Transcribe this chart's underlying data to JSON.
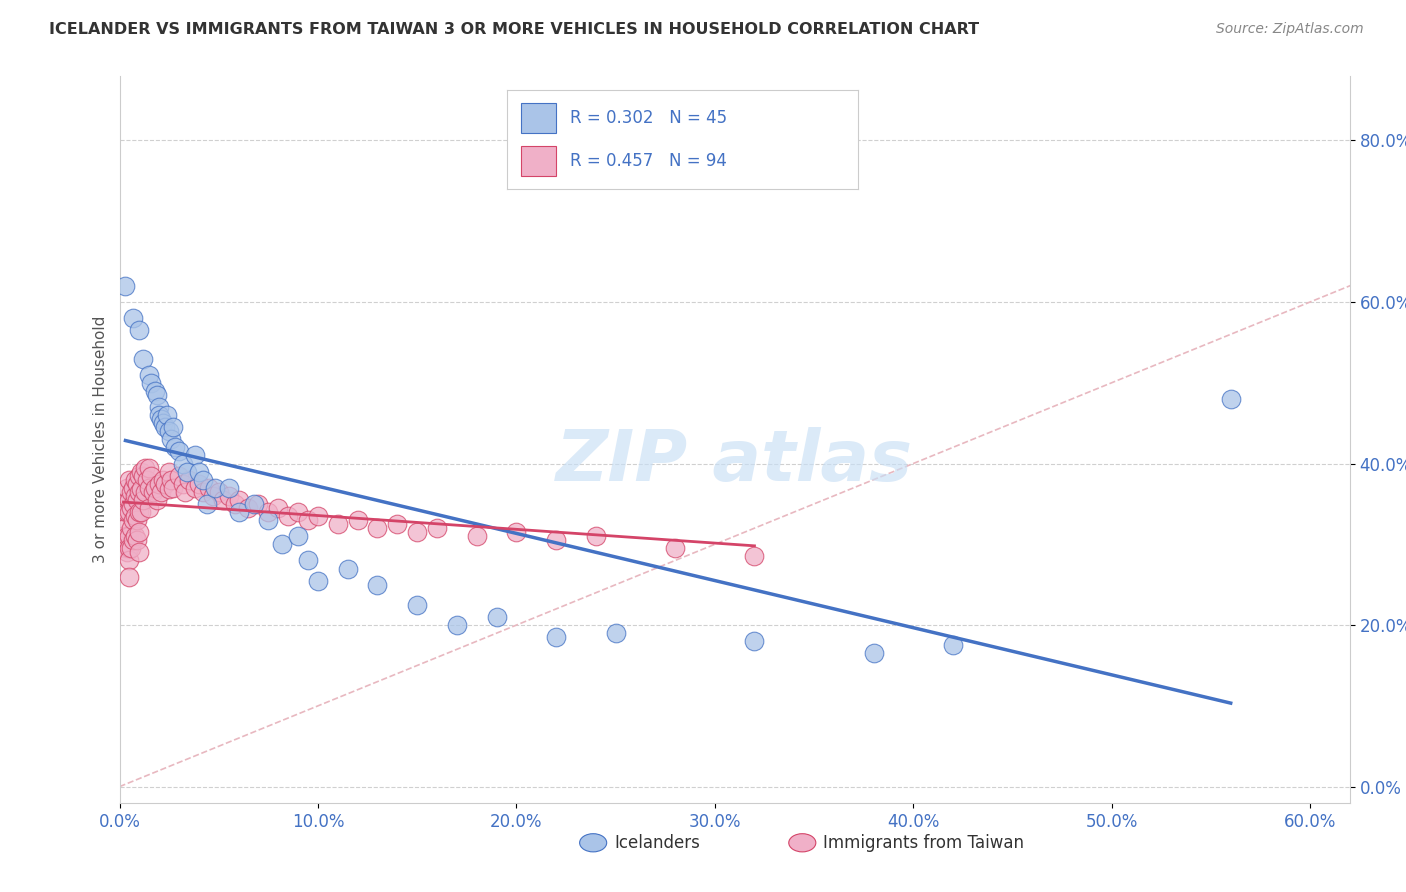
{
  "title": "ICELANDER VS IMMIGRANTS FROM TAIWAN 3 OR MORE VEHICLES IN HOUSEHOLD CORRELATION CHART",
  "source": "Source: ZipAtlas.com",
  "ylabel": "3 or more Vehicles in Household",
  "xlim": [
    0.0,
    0.62
  ],
  "ylim": [
    -0.02,
    0.88
  ],
  "legend_labels": [
    "Icelanders",
    "Immigrants from Taiwan"
  ],
  "R_icelander": 0.302,
  "N_icelander": 45,
  "R_taiwan": 0.457,
  "N_taiwan": 94,
  "color_icelander": "#aac4e8",
  "color_taiwan": "#f0b0c8",
  "line_color_icelander": "#4472c4",
  "line_color_taiwan": "#d44468",
  "diagonal_color": "#e8b8c0",
  "background_color": "#ffffff",
  "icelander_x": [
    0.003,
    0.007,
    0.01,
    0.012,
    0.015,
    0.016,
    0.018,
    0.019,
    0.02,
    0.02,
    0.021,
    0.022,
    0.023,
    0.024,
    0.025,
    0.026,
    0.027,
    0.028,
    0.03,
    0.032,
    0.034,
    0.038,
    0.04,
    0.042,
    0.044,
    0.048,
    0.055,
    0.06,
    0.068,
    0.075,
    0.082,
    0.09,
    0.095,
    0.1,
    0.115,
    0.13,
    0.15,
    0.17,
    0.19,
    0.22,
    0.25,
    0.32,
    0.38,
    0.42,
    0.56
  ],
  "icelander_y": [
    0.62,
    0.58,
    0.565,
    0.53,
    0.51,
    0.5,
    0.49,
    0.485,
    0.47,
    0.46,
    0.455,
    0.45,
    0.445,
    0.46,
    0.44,
    0.43,
    0.445,
    0.42,
    0.415,
    0.4,
    0.39,
    0.41,
    0.39,
    0.38,
    0.35,
    0.37,
    0.37,
    0.34,
    0.35,
    0.33,
    0.3,
    0.31,
    0.28,
    0.255,
    0.27,
    0.25,
    0.225,
    0.2,
    0.21,
    0.185,
    0.19,
    0.18,
    0.165,
    0.175,
    0.48
  ],
  "taiwan_x": [
    0.002,
    0.002,
    0.003,
    0.003,
    0.003,
    0.004,
    0.004,
    0.004,
    0.004,
    0.005,
    0.005,
    0.005,
    0.005,
    0.005,
    0.005,
    0.005,
    0.006,
    0.006,
    0.006,
    0.006,
    0.007,
    0.007,
    0.007,
    0.007,
    0.008,
    0.008,
    0.008,
    0.008,
    0.009,
    0.009,
    0.009,
    0.009,
    0.01,
    0.01,
    0.01,
    0.01,
    0.01,
    0.011,
    0.011,
    0.011,
    0.012,
    0.012,
    0.013,
    0.013,
    0.014,
    0.015,
    0.015,
    0.015,
    0.016,
    0.017,
    0.018,
    0.019,
    0.02,
    0.021,
    0.022,
    0.023,
    0.025,
    0.025,
    0.026,
    0.027,
    0.03,
    0.032,
    0.033,
    0.035,
    0.038,
    0.04,
    0.042,
    0.045,
    0.047,
    0.05,
    0.052,
    0.055,
    0.058,
    0.06,
    0.065,
    0.07,
    0.075,
    0.08,
    0.085,
    0.09,
    0.095,
    0.1,
    0.11,
    0.12,
    0.13,
    0.14,
    0.15,
    0.16,
    0.18,
    0.2,
    0.22,
    0.24,
    0.28,
    0.32
  ],
  "taiwan_y": [
    0.35,
    0.31,
    0.34,
    0.32,
    0.295,
    0.37,
    0.34,
    0.31,
    0.29,
    0.38,
    0.355,
    0.34,
    0.31,
    0.295,
    0.28,
    0.26,
    0.365,
    0.345,
    0.32,
    0.295,
    0.37,
    0.35,
    0.33,
    0.305,
    0.38,
    0.36,
    0.335,
    0.31,
    0.375,
    0.355,
    0.33,
    0.305,
    0.385,
    0.365,
    0.34,
    0.315,
    0.29,
    0.39,
    0.368,
    0.34,
    0.385,
    0.355,
    0.395,
    0.365,
    0.38,
    0.395,
    0.37,
    0.345,
    0.385,
    0.365,
    0.37,
    0.355,
    0.375,
    0.365,
    0.38,
    0.375,
    0.39,
    0.368,
    0.38,
    0.37,
    0.385,
    0.375,
    0.365,
    0.38,
    0.37,
    0.375,
    0.365,
    0.37,
    0.36,
    0.365,
    0.355,
    0.36,
    0.35,
    0.355,
    0.345,
    0.35,
    0.34,
    0.345,
    0.335,
    0.34,
    0.33,
    0.335,
    0.325,
    0.33,
    0.32,
    0.325,
    0.315,
    0.32,
    0.31,
    0.315,
    0.305,
    0.31,
    0.295,
    0.285
  ]
}
